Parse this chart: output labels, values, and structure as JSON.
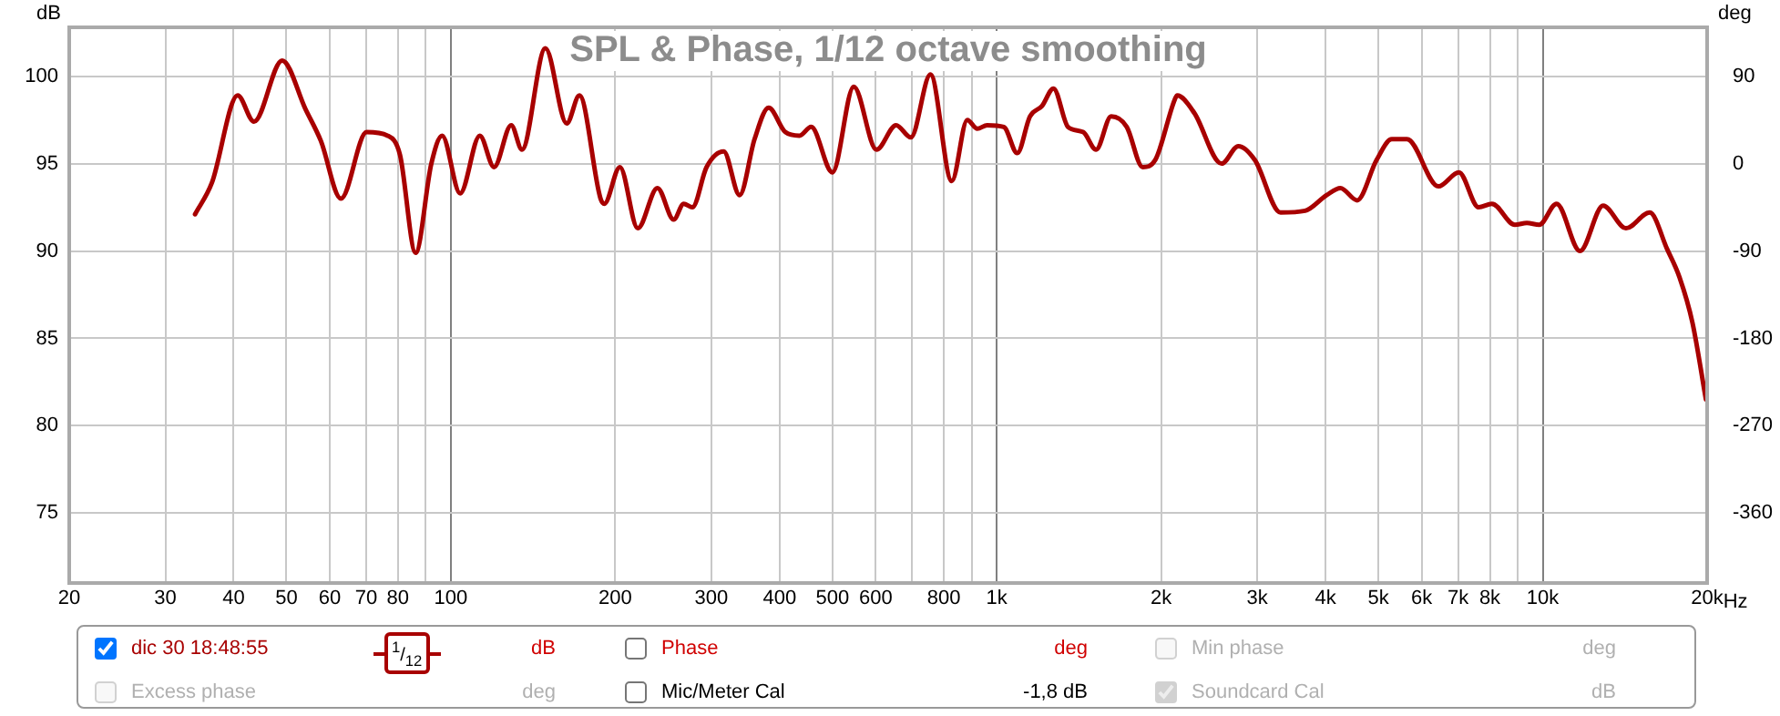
{
  "chart_data": {
    "type": "line",
    "title": "SPL & Phase, 1/12 octave smoothing",
    "ylabel": "dB",
    "y2label": "deg",
    "log": "x",
    "grid": true,
    "legend": "bottom",
    "marker": "none",
    "line_style": "solid",
    "xlim": [
      20,
      20000
    ],
    "xticks": [
      20,
      30,
      40,
      50,
      60,
      70,
      80,
      {
        "value": 90,
        "label": null
      },
      100,
      200,
      300,
      400,
      500,
      600,
      {
        "value": 700,
        "label": null
      },
      800,
      {
        "value": 900,
        "label": null
      },
      {
        "value": 1000,
        "label": "1k"
      },
      {
        "value": 2000,
        "label": "2k"
      },
      {
        "value": 3000,
        "label": "3k"
      },
      {
        "value": 4000,
        "label": "4k"
      },
      {
        "value": 5000,
        "label": "5k"
      },
      {
        "value": 6000,
        "label": "6k"
      },
      {
        "value": 7000,
        "label": "7k"
      },
      {
        "value": 8000,
        "label": "8k"
      },
      {
        "value": 9000,
        "label": null
      },
      {
        "value": 10000,
        "label": "10k"
      },
      {
        "value": 20000,
        "label": "20k"
      }
    ],
    "xlabel": "Hz",
    "ylim": [
      71,
      102.8
    ],
    "yticks": [
      75,
      80,
      85,
      90,
      95,
      100
    ],
    "y2lim": [
      -432,
      140.4
    ],
    "y2ticks": [
      -360,
      -270,
      -180,
      -90,
      0,
      90
    ],
    "series": [
      {
        "name": "dic 30 18:48:55",
        "color": "#a80000",
        "x": [
          34.0,
          36.5,
          40.7,
          43.6,
          49.1,
          54.2,
          57.8,
          62.9,
          70.1,
          76.6,
          80.7,
          86.2,
          92.1,
          96.4,
          104,
          113,
          120,
          129,
          135,
          149,
          163,
          172,
          188,
          191,
          204,
          220,
          239,
          256,
          267,
          277,
          294,
          316,
          338,
          360,
          382,
          410,
          435,
          457,
          500,
          547,
          602,
          654,
          696,
          756,
          827,
          883,
          921,
          960,
          1030,
          1090,
          1150,
          1210,
          1270,
          1350,
          1440,
          1520,
          1620,
          1730,
          1850,
          1950,
          2120,
          2140,
          2300,
          2580,
          2770,
          2970,
          3310,
          3670,
          4020,
          4260,
          4570,
          4960,
          5290,
          5640,
          6440,
          7020,
          7630,
          8070,
          8890,
          9350,
          9850,
          10600,
          11700,
          12900,
          14200,
          15700,
          16900,
          17800,
          18800,
          19900
        ],
        "values": [
          92.1,
          93.9,
          98.9,
          97.4,
          100.9,
          98.1,
          96.3,
          93.0,
          96.8,
          96.6,
          95.5,
          89.9,
          95.0,
          96.6,
          93.3,
          96.6,
          94.8,
          97.2,
          95.8,
          101.6,
          97.3,
          98.9,
          93.0,
          92.7,
          94.8,
          91.3,
          93.6,
          91.8,
          92.7,
          92.5,
          94.8,
          95.7,
          93.2,
          96.4,
          98.2,
          96.8,
          96.6,
          97.1,
          94.5,
          99.4,
          95.8,
          97.2,
          96.5,
          100.1,
          94.0,
          97.5,
          97.0,
          97.2,
          97.1,
          95.6,
          97.7,
          98.3,
          99.3,
          97.1,
          96.8,
          95.8,
          97.7,
          97.1,
          94.8,
          95.2,
          98.7,
          98.9,
          97.9,
          95.0,
          96.0,
          95.2,
          92.2,
          92.3,
          93.2,
          93.6,
          92.9,
          95.2,
          96.4,
          96.4,
          93.7,
          94.5,
          92.5,
          92.7,
          91.5,
          91.6,
          91.5,
          92.7,
          90.0,
          92.6,
          91.3,
          92.2,
          90.1,
          88.5,
          85.9,
          81.5
        ]
      }
    ],
    "annotations": [
      "$^{1}$/$_{12}$",
      "dB",
      "Phase",
      "deg",
      "Min phase",
      "deg",
      "Excess phase",
      "deg",
      "Mic/Meter Cal",
      "-1,8 dB",
      "Soundcard Cal",
      "dB"
    ]
  }
}
